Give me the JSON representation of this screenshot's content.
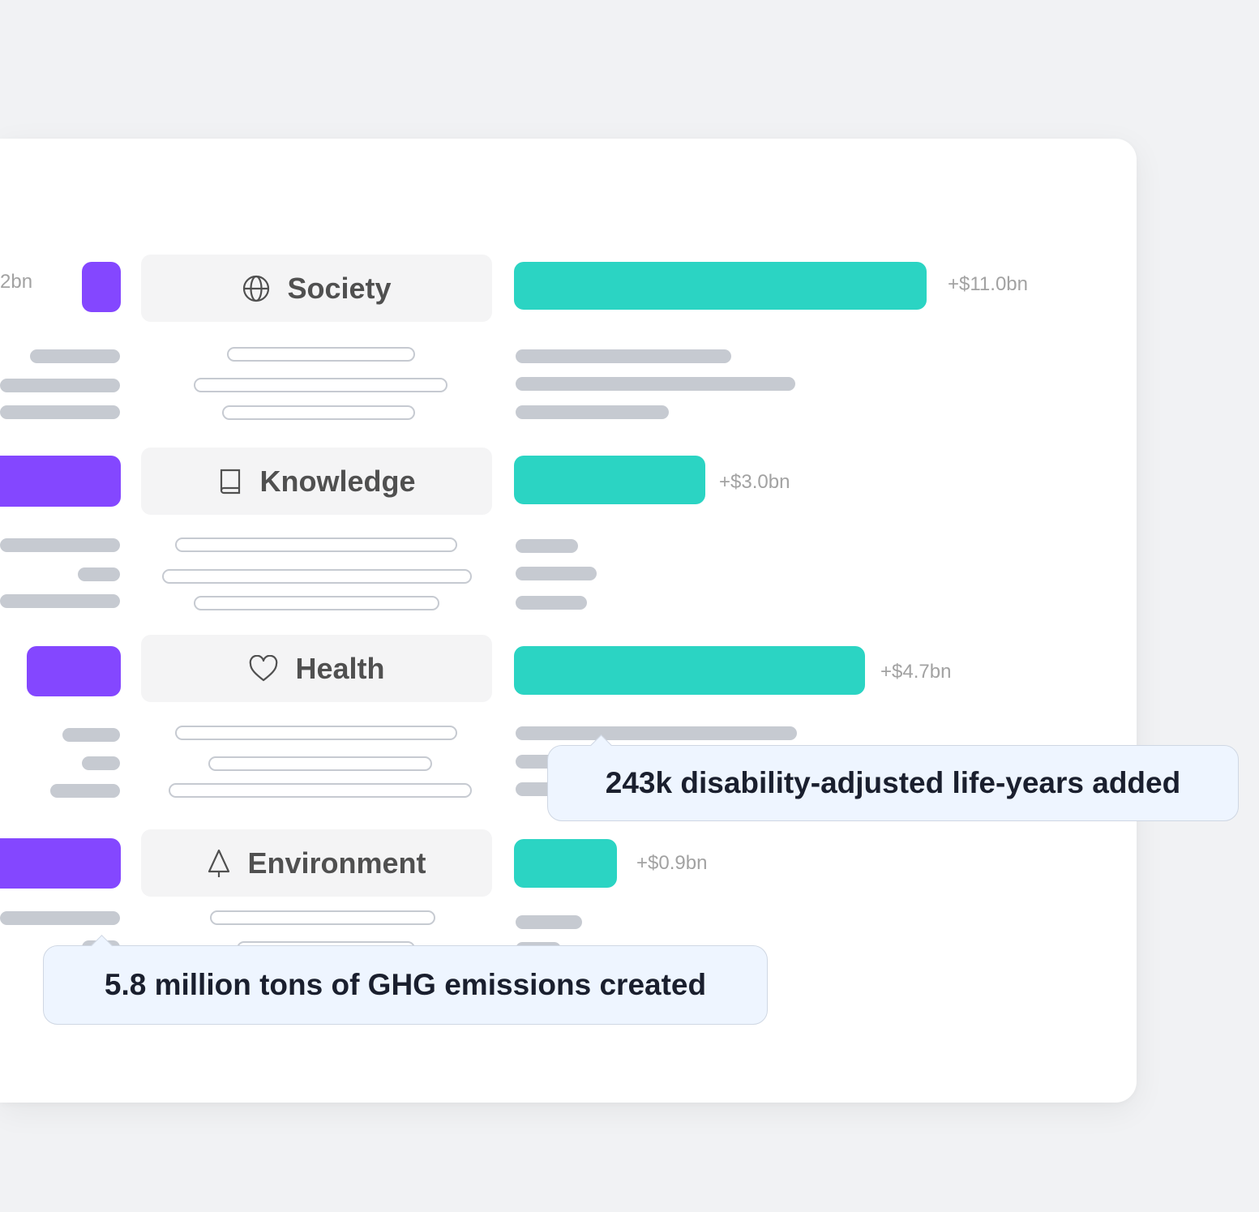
{
  "categories": [
    {
      "key": "society",
      "label": "Society",
      "icon": "globe-icon",
      "positive_value": "+$11.0bn",
      "negative_value_partial": "2bn"
    },
    {
      "key": "knowledge",
      "label": "Knowledge",
      "icon": "book-icon",
      "positive_value": "+$3.0bn"
    },
    {
      "key": "health",
      "label": "Health",
      "icon": "heart-icon",
      "positive_value": "+$4.7bn"
    },
    {
      "key": "environment",
      "label": "Environment",
      "icon": "tree-icon",
      "positive_value": "+$0.9bn"
    }
  ],
  "tooltips": {
    "health": "243k disability-adjusted life-years added",
    "environment": "5.8 million tons of GHG emissions created"
  },
  "colors": {
    "negative_bar": "#8447ff",
    "positive_bar": "#2bd4c3",
    "tooltip_bg": "#eef5ff"
  }
}
